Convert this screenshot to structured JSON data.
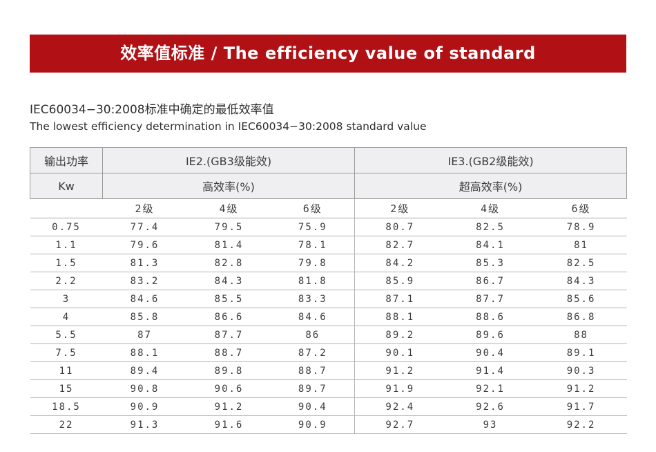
{
  "banner": {
    "title": "效率值标准 / The efficiency value of standard"
  },
  "intro": {
    "line_cn": "IEC60034−30:2008标准中确定的最低效率值",
    "line_en": "The lowest efficiency determination in IEC60034−30:2008 standard value"
  },
  "table": {
    "power_header": "输出功率",
    "power_unit": "Kw",
    "groups": [
      {
        "title": "IE2.(GB3级能效)",
        "subtitle": "高效率(%)"
      },
      {
        "title": "IE3.(GB2级能效)",
        "subtitle": "超高效率(%)"
      }
    ],
    "pole_headers": [
      "2级",
      "4级",
      "6级",
      "2级",
      "4级",
      "6级"
    ],
    "rows": [
      [
        "0.75",
        "77.4",
        "79.5",
        "75.9",
        "80.7",
        "82.5",
        "78.9"
      ],
      [
        "1.1",
        "79.6",
        "81.4",
        "78.1",
        "82.7",
        "84.1",
        "81"
      ],
      [
        "1.5",
        "81.3",
        "82.8",
        "79.8",
        "84.2",
        "85.3",
        "82.5"
      ],
      [
        "2.2",
        "83.2",
        "84.3",
        "81.8",
        "85.9",
        "86.7",
        "84.3"
      ],
      [
        "3",
        "84.6",
        "85.5",
        "83.3",
        "87.1",
        "87.7",
        "85.6"
      ],
      [
        "4",
        "85.8",
        "86.6",
        "84.6",
        "88.1",
        "88.6",
        "86.8"
      ],
      [
        "5.5",
        "87",
        "87.7",
        "86",
        "89.2",
        "89.6",
        "88"
      ],
      [
        "7.5",
        "88.1",
        "88.7",
        "87.2",
        "90.1",
        "90.4",
        "89.1"
      ],
      [
        "11",
        "89.4",
        "89.8",
        "88.7",
        "91.2",
        "91.4",
        "90.3"
      ],
      [
        "15",
        "90.8",
        "90.6",
        "89.7",
        "91.9",
        "92.1",
        "91.2"
      ],
      [
        "18.5",
        "90.9",
        "91.2",
        "90.4",
        "92.4",
        "92.6",
        "91.7"
      ],
      [
        "22",
        "91.3",
        "91.6",
        "90.9",
        "92.7",
        "93",
        "92.2"
      ]
    ]
  },
  "colors": {
    "banner_red": "#b11015",
    "header_bg": "#efeef0",
    "grid_line": "#9b9b9b"
  }
}
